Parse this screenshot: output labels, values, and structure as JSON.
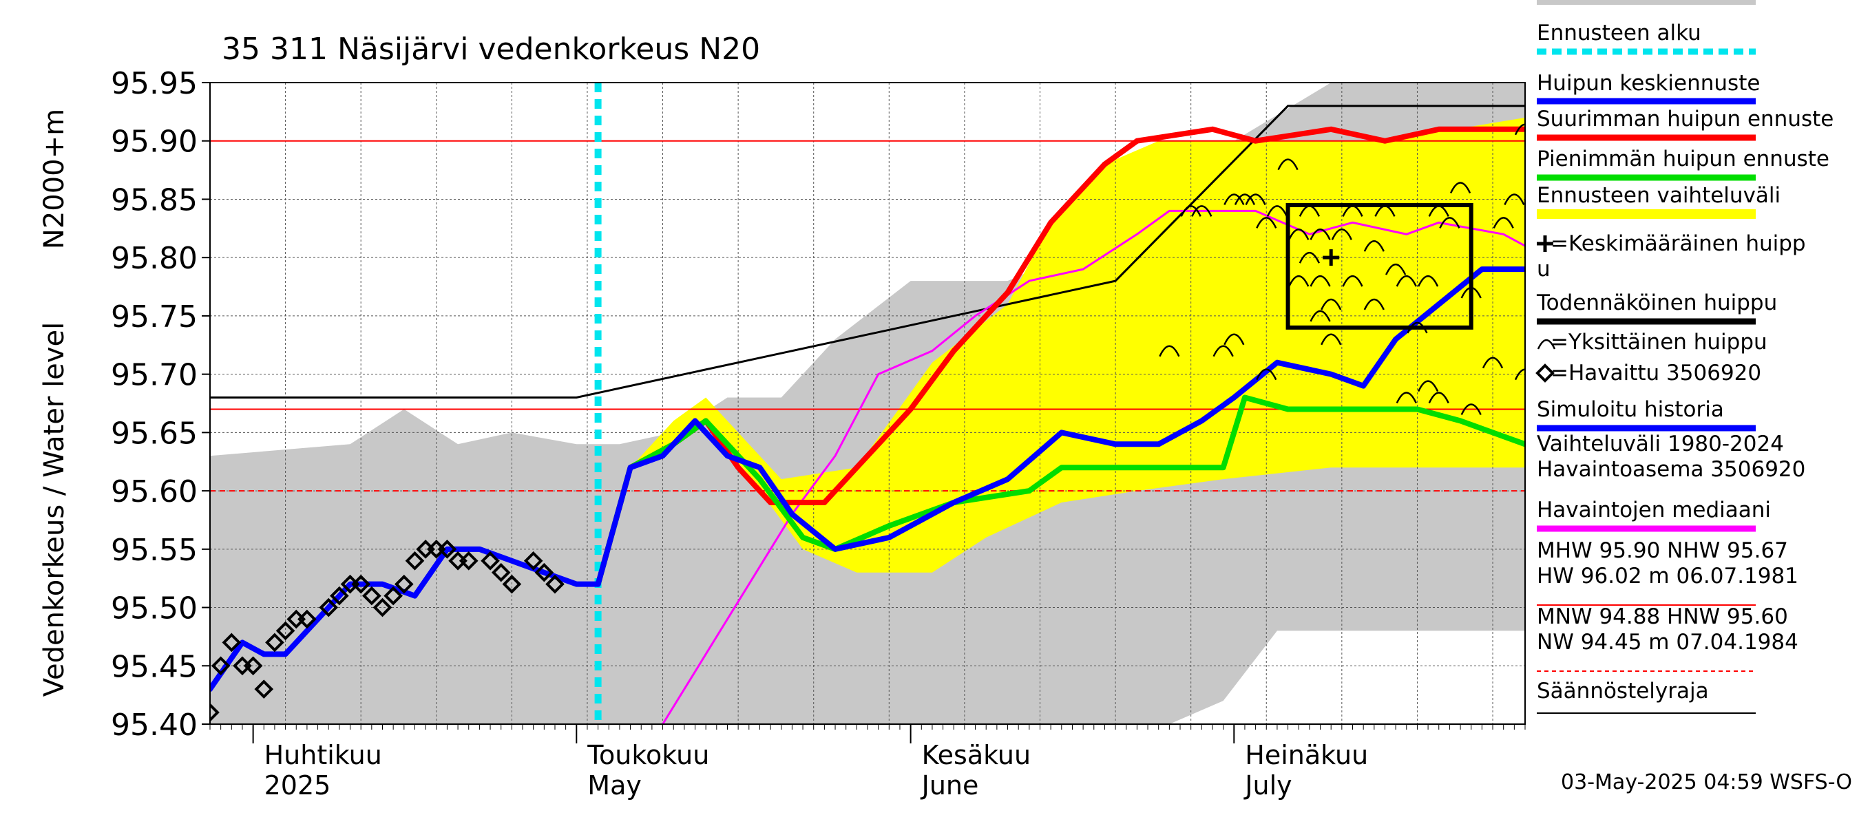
{
  "chart_data": {
    "type": "line",
    "title": "35 311 Näsijärvi vedenkorkeus N20",
    "ylabel_main": "Vedenkorkeus / Water level",
    "ylabel_unit": "N2000+m",
    "ylim": [
      95.4,
      95.95
    ],
    "yticks": [
      "95.40",
      "95.45",
      "95.50",
      "95.55",
      "95.60",
      "95.65",
      "95.70",
      "95.75",
      "95.80",
      "95.85",
      "95.90",
      "95.95"
    ],
    "xlim": [
      "2025-03-28",
      "2025-07-28"
    ],
    "month_labels": [
      {
        "date": "2025-04-01",
        "fi": "Huhtikuu",
        "en": "2025"
      },
      {
        "date": "2025-05-01",
        "fi": "Toukokuu",
        "en": "May"
      },
      {
        "date": "2025-06-01",
        "fi": "Kesäkuu",
        "en": "June"
      },
      {
        "date": "2025-07-01",
        "fi": "Heinäkuu",
        "en": "July"
      }
    ],
    "forecast_start": "2025-05-03",
    "reference_lines": [
      {
        "name": "MHW",
        "value": 95.9,
        "style": "solid",
        "color": "#ff0000"
      },
      {
        "name": "NHW",
        "value": 95.67,
        "style": "solid",
        "color": "#ff0000"
      },
      {
        "name": "HNW",
        "value": 95.6,
        "style": "dashed",
        "color": "#ff0000"
      }
    ],
    "regulation_limit": {
      "name": "Säännöstelyraja",
      "points": [
        [
          "2025-03-28",
          95.68
        ],
        [
          "2025-05-01",
          95.68
        ],
        [
          "2025-06-20",
          95.78
        ],
        [
          "2025-07-06",
          95.93
        ],
        [
          "2025-07-28",
          95.93
        ]
      ]
    },
    "series": [
      {
        "name": "Vaihteluväli 1980-2024",
        "kind": "band",
        "color": "#c8c8c8",
        "upper": [
          [
            "2025-03-28",
            95.63
          ],
          [
            "2025-04-10",
            95.64
          ],
          [
            "2025-04-15",
            95.67
          ],
          [
            "2025-04-20",
            95.64
          ],
          [
            "2025-04-25",
            95.65
          ],
          [
            "2025-05-01",
            95.64
          ],
          [
            "2025-05-05",
            95.64
          ],
          [
            "2025-05-10",
            95.65
          ],
          [
            "2025-05-15",
            95.68
          ],
          [
            "2025-05-20",
            95.68
          ],
          [
            "2025-05-25",
            95.73
          ],
          [
            "2025-06-01",
            95.78
          ],
          [
            "2025-06-10",
            95.78
          ],
          [
            "2025-06-20",
            95.82
          ],
          [
            "2025-06-25",
            95.84
          ],
          [
            "2025-07-01",
            95.9
          ],
          [
            "2025-07-10",
            95.95
          ],
          [
            "2025-07-28",
            95.95
          ]
        ],
        "lower": [
          [
            "2025-03-28",
            95.4
          ],
          [
            "2025-06-10",
            95.4
          ],
          [
            "2025-06-25",
            95.4
          ],
          [
            "2025-06-30",
            95.42
          ],
          [
            "2025-07-05",
            95.48
          ],
          [
            "2025-07-28",
            95.48
          ]
        ]
      },
      {
        "name": "Ennusteen vaihteluväli",
        "kind": "band",
        "color": "#ffff00",
        "upper": [
          [
            "2025-05-03",
            95.52
          ],
          [
            "2025-05-06",
            95.62
          ],
          [
            "2025-05-10",
            95.66
          ],
          [
            "2025-05-13",
            95.68
          ],
          [
            "2025-05-20",
            95.61
          ],
          [
            "2025-05-27",
            95.62
          ],
          [
            "2025-06-03",
            95.71
          ],
          [
            "2025-06-10",
            95.76
          ],
          [
            "2025-06-14",
            95.83
          ],
          [
            "2025-06-19",
            95.88
          ],
          [
            "2025-06-24",
            95.9
          ],
          [
            "2025-06-30",
            95.9
          ],
          [
            "2025-07-05",
            95.9
          ],
          [
            "2025-07-15",
            95.9
          ],
          [
            "2025-07-28",
            95.92
          ]
        ],
        "lower": [
          [
            "2025-05-03",
            95.52
          ],
          [
            "2025-05-06",
            95.62
          ],
          [
            "2025-05-10",
            95.64
          ],
          [
            "2025-05-13",
            95.66
          ],
          [
            "2025-05-18",
            95.6
          ],
          [
            "2025-05-22",
            95.55
          ],
          [
            "2025-05-27",
            95.53
          ],
          [
            "2025-06-03",
            95.53
          ],
          [
            "2025-06-08",
            95.56
          ],
          [
            "2025-06-15",
            95.59
          ],
          [
            "2025-06-22",
            95.6
          ],
          [
            "2025-06-30",
            95.61
          ],
          [
            "2025-07-10",
            95.62
          ],
          [
            "2025-07-20",
            95.62
          ],
          [
            "2025-07-28",
            95.62
          ]
        ]
      },
      {
        "name": "Havaintojen mediaani",
        "kind": "line",
        "color": "#ff00ff",
        "points": [
          [
            "2025-05-09",
            95.4
          ],
          [
            "2025-05-13",
            95.46
          ],
          [
            "2025-05-17",
            95.52
          ],
          [
            "2025-05-21",
            95.58
          ],
          [
            "2025-05-25",
            95.63
          ],
          [
            "2025-05-29",
            95.7
          ],
          [
            "2025-06-03",
            95.72
          ],
          [
            "2025-06-07",
            95.75
          ],
          [
            "2025-06-12",
            95.78
          ],
          [
            "2025-06-17",
            95.79
          ],
          [
            "2025-06-22",
            95.82
          ],
          [
            "2025-06-25",
            95.84
          ],
          [
            "2025-07-03",
            95.84
          ],
          [
            "2025-07-08",
            95.82
          ],
          [
            "2025-07-12",
            95.83
          ],
          [
            "2025-07-17",
            95.82
          ],
          [
            "2025-07-20",
            95.83
          ],
          [
            "2025-07-26",
            95.82
          ],
          [
            "2025-07-28",
            95.81
          ]
        ]
      },
      {
        "name": "Suurimman huipun ennuste",
        "kind": "line",
        "color": "#ff0000",
        "points": [
          [
            "2025-05-03",
            95.52
          ],
          [
            "2025-05-06",
            95.62
          ],
          [
            "2025-05-10",
            95.64
          ],
          [
            "2025-05-13",
            95.66
          ],
          [
            "2025-05-16",
            95.62
          ],
          [
            "2025-05-19",
            95.59
          ],
          [
            "2025-05-24",
            95.59
          ],
          [
            "2025-05-27",
            95.62
          ],
          [
            "2025-06-01",
            95.67
          ],
          [
            "2025-06-05",
            95.72
          ],
          [
            "2025-06-10",
            95.77
          ],
          [
            "2025-06-14",
            95.83
          ],
          [
            "2025-06-19",
            95.88
          ],
          [
            "2025-06-22",
            95.9
          ],
          [
            "2025-06-29",
            95.91
          ],
          [
            "2025-07-03",
            95.9
          ],
          [
            "2025-07-10",
            95.91
          ],
          [
            "2025-07-15",
            95.9
          ],
          [
            "2025-07-20",
            95.91
          ],
          [
            "2025-07-26",
            95.91
          ],
          [
            "2025-07-28",
            95.91
          ]
        ]
      },
      {
        "name": "Pienimmän huipun ennuste",
        "kind": "line",
        "color": "#00dd00",
        "points": [
          [
            "2025-05-03",
            95.52
          ],
          [
            "2025-05-06",
            95.62
          ],
          [
            "2025-05-10",
            95.64
          ],
          [
            "2025-05-13",
            95.66
          ],
          [
            "2025-05-18",
            95.61
          ],
          [
            "2025-05-22",
            95.56
          ],
          [
            "2025-05-25",
            95.55
          ],
          [
            "2025-05-30",
            95.57
          ],
          [
            "2025-06-05",
            95.59
          ],
          [
            "2025-06-12",
            95.6
          ],
          [
            "2025-06-15",
            95.62
          ],
          [
            "2025-06-22",
            95.62
          ],
          [
            "2025-06-27",
            95.62
          ],
          [
            "2025-06-30",
            95.62
          ],
          [
            "2025-07-02",
            95.68
          ],
          [
            "2025-07-06",
            95.67
          ],
          [
            "2025-07-10",
            95.67
          ],
          [
            "2025-07-15",
            95.67
          ],
          [
            "2025-07-18",
            95.67
          ],
          [
            "2025-07-22",
            95.66
          ],
          [
            "2025-07-25",
            95.65
          ],
          [
            "2025-07-28",
            95.64
          ]
        ]
      },
      {
        "name": "Simuloitu historia",
        "kind": "line",
        "color": "#0000ff",
        "points": [
          [
            "2025-03-28",
            95.43
          ],
          [
            "2025-03-31",
            95.47
          ],
          [
            "2025-04-02",
            95.46
          ],
          [
            "2025-04-04",
            95.46
          ],
          [
            "2025-04-07",
            95.49
          ],
          [
            "2025-04-10",
            95.52
          ],
          [
            "2025-04-13",
            95.52
          ],
          [
            "2025-04-16",
            95.51
          ],
          [
            "2025-04-19",
            95.55
          ],
          [
            "2025-04-22",
            95.55
          ],
          [
            "2025-04-25",
            95.54
          ],
          [
            "2025-04-28",
            95.53
          ],
          [
            "2025-05-01",
            95.52
          ],
          [
            "2025-05-03",
            95.52
          ],
          [
            "2025-05-06",
            95.62
          ],
          [
            "2025-05-09",
            95.63
          ],
          [
            "2025-05-12",
            95.66
          ],
          [
            "2025-05-15",
            95.63
          ],
          [
            "2025-05-18",
            95.62
          ],
          [
            "2025-05-21",
            95.58
          ],
          [
            "2025-05-25",
            95.55
          ],
          [
            "2025-05-30",
            95.56
          ],
          [
            "2025-06-05",
            95.59
          ],
          [
            "2025-06-10",
            95.61
          ],
          [
            "2025-06-15",
            95.65
          ],
          [
            "2025-06-20",
            95.64
          ],
          [
            "2025-06-24",
            95.64
          ],
          [
            "2025-06-28",
            95.66
          ],
          [
            "2025-07-01",
            95.68
          ],
          [
            "2025-07-05",
            95.71
          ],
          [
            "2025-07-10",
            95.7
          ],
          [
            "2025-07-13",
            95.69
          ],
          [
            "2025-07-16",
            95.73
          ],
          [
            "2025-07-20",
            95.76
          ],
          [
            "2025-07-24",
            95.79
          ],
          [
            "2025-07-28",
            95.79
          ]
        ]
      },
      {
        "name": "Havaittu 3506920",
        "kind": "markers",
        "marker": "diamond",
        "points": [
          [
            "2025-03-28",
            95.41
          ],
          [
            "2025-03-29",
            95.45
          ],
          [
            "2025-03-30",
            95.47
          ],
          [
            "2025-03-31",
            95.45
          ],
          [
            "2025-04-01",
            95.45
          ],
          [
            "2025-04-02",
            95.43
          ],
          [
            "2025-04-03",
            95.47
          ],
          [
            "2025-04-04",
            95.48
          ],
          [
            "2025-04-05",
            95.49
          ],
          [
            "2025-04-06",
            95.49
          ],
          [
            "2025-04-08",
            95.5
          ],
          [
            "2025-04-09",
            95.51
          ],
          [
            "2025-04-10",
            95.52
          ],
          [
            "2025-04-11",
            95.52
          ],
          [
            "2025-04-12",
            95.51
          ],
          [
            "2025-04-13",
            95.5
          ],
          [
            "2025-04-14",
            95.51
          ],
          [
            "2025-04-15",
            95.52
          ],
          [
            "2025-04-16",
            95.54
          ],
          [
            "2025-04-17",
            95.55
          ],
          [
            "2025-04-18",
            95.55
          ],
          [
            "2025-04-19",
            95.55
          ],
          [
            "2025-04-20",
            95.54
          ],
          [
            "2025-04-21",
            95.54
          ],
          [
            "2025-04-23",
            95.54
          ],
          [
            "2025-04-24",
            95.53
          ],
          [
            "2025-04-25",
            95.52
          ],
          [
            "2025-04-27",
            95.54
          ],
          [
            "2025-04-28",
            95.53
          ],
          [
            "2025-04-29",
            95.52
          ]
        ]
      }
    ],
    "individual_peaks": [
      [
        "2025-06-27",
        95.84
      ],
      [
        "2025-06-28",
        95.84
      ],
      [
        "2025-07-01",
        95.85
      ],
      [
        "2025-07-02",
        95.85
      ],
      [
        "2025-07-03",
        95.85
      ],
      [
        "2025-07-04",
        95.83
      ],
      [
        "2025-07-05",
        95.84
      ],
      [
        "2025-07-06",
        95.88
      ],
      [
        "2025-07-07",
        95.82
      ],
      [
        "2025-07-08",
        95.84
      ],
      [
        "2025-07-08",
        95.8
      ],
      [
        "2025-07-09",
        95.78
      ],
      [
        "2025-07-09",
        95.75
      ],
      [
        "2025-07-10",
        95.76
      ],
      [
        "2025-07-10",
        95.73
      ],
      [
        "2025-07-11",
        95.82
      ],
      [
        "2025-07-12",
        95.84
      ],
      [
        "2025-07-14",
        95.81
      ],
      [
        "2025-07-15",
        95.84
      ],
      [
        "2025-07-16",
        95.79
      ],
      [
        "2025-07-17",
        95.78
      ],
      [
        "2025-07-18",
        95.74
      ],
      [
        "2025-07-19",
        95.69
      ],
      [
        "2025-07-20",
        95.84
      ],
      [
        "2025-07-20",
        95.68
      ],
      [
        "2025-07-21",
        95.83
      ],
      [
        "2025-07-22",
        95.86
      ],
      [
        "2025-07-23",
        95.77
      ],
      [
        "2025-07-23",
        95.67
      ],
      [
        "2025-07-25",
        95.71
      ],
      [
        "2025-07-26",
        95.83
      ],
      [
        "2025-07-27",
        95.85
      ],
      [
        "2025-07-28",
        95.91
      ],
      [
        "2025-07-28",
        95.7
      ],
      [
        "2025-06-25",
        95.72
      ],
      [
        "2025-06-30",
        95.72
      ],
      [
        "2025-07-01",
        95.73
      ],
      [
        "2025-07-04",
        95.7
      ],
      [
        "2025-07-07",
        95.78
      ],
      [
        "2025-07-09",
        95.82
      ],
      [
        "2025-07-12",
        95.78
      ],
      [
        "2025-07-14",
        95.76
      ],
      [
        "2025-07-17",
        95.68
      ],
      [
        "2025-07-19",
        95.78
      ]
    ],
    "mean_peak": {
      "date": "2025-07-10",
      "value": 95.8
    },
    "probable_peak_box": {
      "x": [
        "2025-07-06",
        "2025-07-23"
      ],
      "y": [
        95.74,
        95.845
      ]
    },
    "legend": [
      {
        "text": "Ennusteen alku",
        "color": "#00e5ee",
        "style": "dashed"
      },
      {
        "text": "Huipun keskiennuste",
        "color": "#0000ff",
        "style": "solid"
      },
      {
        "text": "Suurimman huipun ennuste",
        "color": "#ff0000",
        "style": "solid"
      },
      {
        "text": "Pienimmän huipun ennuste",
        "color": "#00dd00",
        "style": "solid"
      },
      {
        "text": "Ennusteen vaihteluväli",
        "color": "#ffff00",
        "style": "solid"
      },
      {
        "text": "=Keskimääräinen huipp",
        "text2": "u",
        "marker": "plus"
      },
      {
        "text": "Todennäköinen huippu",
        "color": "#000000",
        "style": "solid"
      },
      {
        "text": "=Yksittäinen huippu",
        "marker": "arc"
      },
      {
        "text": "=Havaittu 3506920",
        "marker": "diamond"
      },
      {
        "text": "Simuloitu historia",
        "color": "#0000ff",
        "style": "solid"
      },
      {
        "text": "Vaihteluväli 1980-2024",
        "text2": " Havaintoasema 3506920",
        "color": "#c8c8c8",
        "style": "solid"
      },
      {
        "text": "Havaintojen mediaani",
        "color": "#ff00ff",
        "style": "solid"
      },
      {
        "text": "MHW  95.90 NHW  95.67",
        "text2": "HW  96.02 m 06.07.1981",
        "color": "#ff0000",
        "style": "solid"
      },
      {
        "text": "MNW  94.88 HNW  95.60",
        "text2": "NW  94.45 m 07.04.1984",
        "color": "#ff0000",
        "style": "dashed"
      },
      {
        "text": "Säännöstelyraja",
        "color": "#000000",
        "style": "solid"
      }
    ],
    "footer": "03-May-2025 04:59 WSFS-O"
  }
}
